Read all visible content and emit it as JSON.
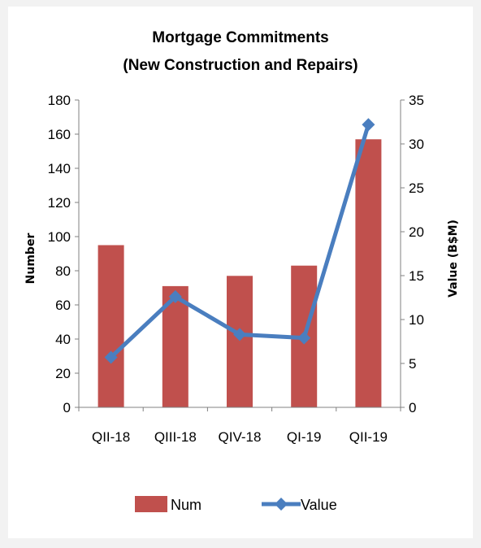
{
  "chart_data": {
    "type": "bar",
    "title": "Mortgage Commitments",
    "subtitle": "(New Construction and Repairs)",
    "categories": [
      "QII-18",
      "QIII-18",
      "QIV-18",
      "QI-19",
      "QII-19"
    ],
    "series": [
      {
        "name": "Num",
        "type": "bar",
        "axis": "left",
        "color": "#c0504d",
        "values": [
          95,
          71,
          77,
          83,
          157
        ]
      },
      {
        "name": "Value",
        "type": "line",
        "axis": "right",
        "color": "#4a7ebf",
        "marker": "diamond",
        "values": [
          5.7,
          12.6,
          8.3,
          7.9,
          32.2
        ]
      }
    ],
    "ylabel": "Number",
    "y2label": "Value (B$M)",
    "ylim": [
      0,
      180
    ],
    "y2lim": [
      0,
      35
    ],
    "yticks": [
      0,
      20,
      40,
      60,
      80,
      100,
      120,
      140,
      160,
      180
    ],
    "y2ticks": [
      0,
      5,
      10,
      15,
      20,
      25,
      30,
      35
    ],
    "grid": false,
    "legend": "bottom"
  }
}
